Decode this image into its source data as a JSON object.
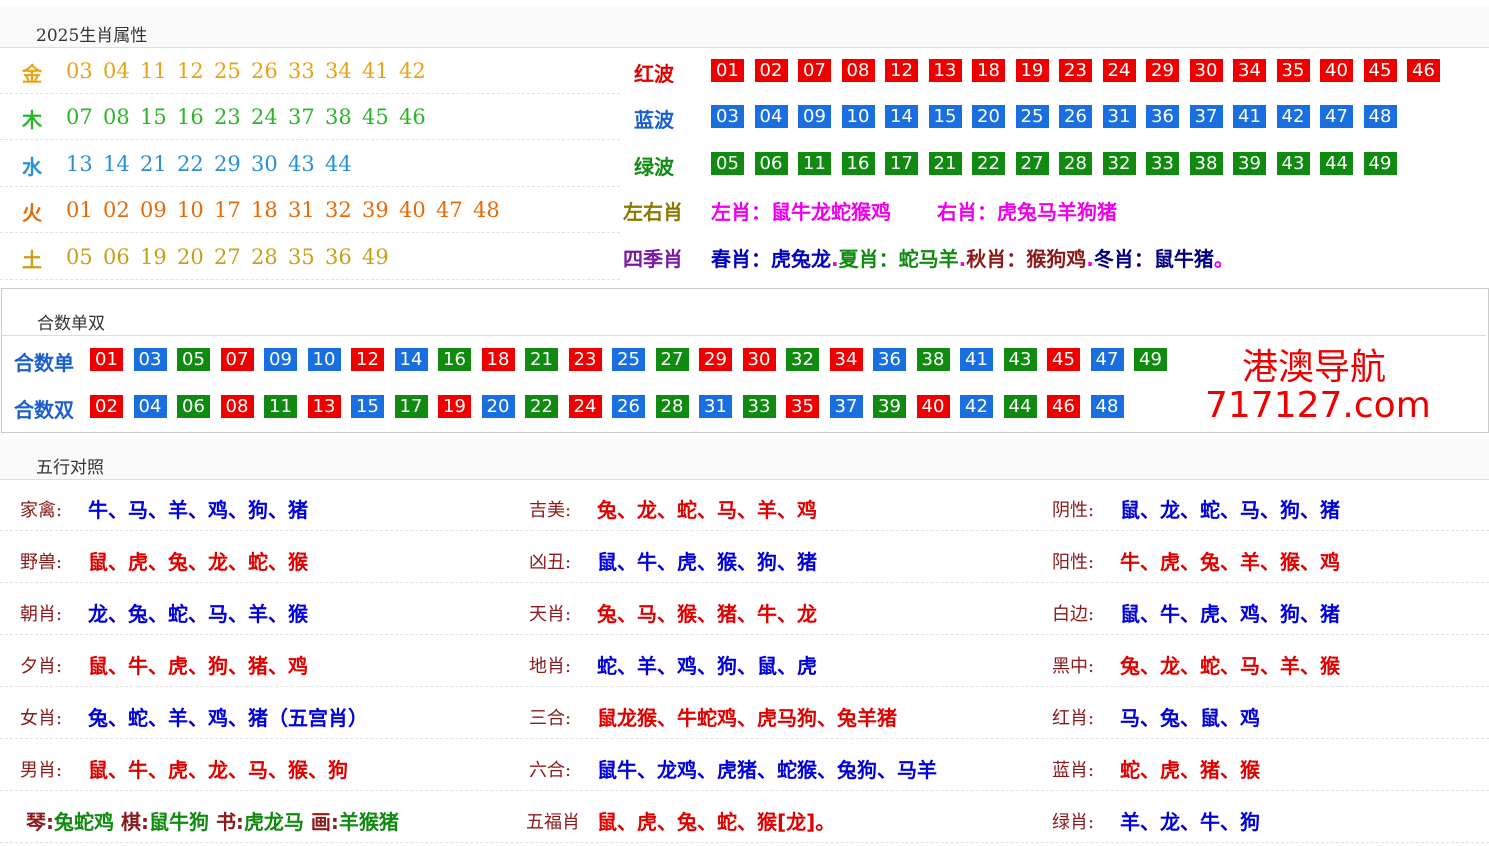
{
  "sec1": {
    "title": "2025生肖属性"
  },
  "elements": [
    {
      "name": "金",
      "color": "#e8a317",
      "nums": [
        "03",
        "04",
        "11",
        "12",
        "25",
        "26",
        "33",
        "34",
        "41",
        "42"
      ]
    },
    {
      "name": "木",
      "color": "#2bb52b",
      "nums": [
        "07",
        "08",
        "15",
        "16",
        "23",
        "24",
        "37",
        "38",
        "45",
        "46"
      ]
    },
    {
      "name": "水",
      "color": "#2a8fd8",
      "nums": [
        "13",
        "14",
        "21",
        "22",
        "29",
        "30",
        "43",
        "44"
      ]
    },
    {
      "name": "火",
      "color": "#e56b0a",
      "nums": [
        "01",
        "02",
        "09",
        "10",
        "17",
        "18",
        "31",
        "32",
        "39",
        "40",
        "47",
        "48"
      ]
    },
    {
      "name": "土",
      "color": "#c8a018",
      "nums": [
        "05",
        "06",
        "19",
        "20",
        "27",
        "28",
        "35",
        "36",
        "49"
      ]
    }
  ],
  "waves": {
    "red": {
      "label": "红波",
      "nums": [
        "01",
        "02",
        "07",
        "08",
        "12",
        "13",
        "18",
        "19",
        "23",
        "24",
        "29",
        "30",
        "34",
        "35",
        "40",
        "45",
        "46"
      ]
    },
    "blue": {
      "label": "蓝波",
      "nums": [
        "03",
        "04",
        "09",
        "10",
        "14",
        "15",
        "20",
        "25",
        "26",
        "31",
        "36",
        "37",
        "41",
        "42",
        "47",
        "48"
      ]
    },
    "green": {
      "label": "绿波",
      "nums": [
        "05",
        "06",
        "11",
        "16",
        "17",
        "21",
        "22",
        "27",
        "28",
        "32",
        "33",
        "38",
        "39",
        "43",
        "44",
        "49"
      ]
    }
  },
  "leftright": {
    "label": "左右肖",
    "left": "左肖：鼠牛龙蛇猴鸡",
    "right": "右肖：虎兔马羊狗猪"
  },
  "seasons": {
    "label": "四季肖",
    "spring": "春肖：虎兔龙",
    "dot1": ".",
    "summer": "夏肖：蛇马羊",
    "dot2": ".",
    "autumn": "秋肖：猴狗鸡",
    "dot3": ".",
    "winter": "冬肖：鼠牛猪",
    "end": "。"
  },
  "sec2": {
    "title": "合数单双"
  },
  "odd": {
    "label": "合数单",
    "balls": [
      [
        "01",
        "r"
      ],
      [
        "03",
        "b"
      ],
      [
        "05",
        "g"
      ],
      [
        "07",
        "r"
      ],
      [
        "09",
        "b"
      ],
      [
        "10",
        "b"
      ],
      [
        "12",
        "r"
      ],
      [
        "14",
        "b"
      ],
      [
        "16",
        "g"
      ],
      [
        "18",
        "r"
      ],
      [
        "21",
        "g"
      ],
      [
        "23",
        "r"
      ],
      [
        "25",
        "b"
      ],
      [
        "27",
        "g"
      ],
      [
        "29",
        "r"
      ],
      [
        "30",
        "r"
      ],
      [
        "32",
        "g"
      ],
      [
        "34",
        "r"
      ],
      [
        "36",
        "b"
      ],
      [
        "38",
        "g"
      ],
      [
        "41",
        "b"
      ],
      [
        "43",
        "g"
      ],
      [
        "45",
        "r"
      ],
      [
        "47",
        "b"
      ],
      [
        "49",
        "g"
      ]
    ]
  },
  "even": {
    "label": "合数双",
    "balls": [
      [
        "02",
        "r"
      ],
      [
        "04",
        "b"
      ],
      [
        "06",
        "g"
      ],
      [
        "08",
        "r"
      ],
      [
        "11",
        "g"
      ],
      [
        "13",
        "r"
      ],
      [
        "15",
        "b"
      ],
      [
        "17",
        "g"
      ],
      [
        "19",
        "r"
      ],
      [
        "20",
        "b"
      ],
      [
        "22",
        "g"
      ],
      [
        "24",
        "r"
      ],
      [
        "26",
        "b"
      ],
      [
        "28",
        "g"
      ],
      [
        "31",
        "b"
      ],
      [
        "33",
        "g"
      ],
      [
        "35",
        "r"
      ],
      [
        "37",
        "b"
      ],
      [
        "39",
        "g"
      ],
      [
        "40",
        "r"
      ],
      [
        "42",
        "b"
      ],
      [
        "44",
        "g"
      ],
      [
        "46",
        "r"
      ],
      [
        "48",
        "b"
      ]
    ]
  },
  "brand": {
    "name": "港澳导航",
    "domain": "717127.com",
    "color": "#e00000"
  },
  "sec3": {
    "title": "五行对照"
  },
  "wuxing": [
    [
      {
        "l": "家禽:",
        "v": "牛、马、羊、鸡、狗、猪",
        "c": "#0000dd"
      },
      {
        "l": "吉美:",
        "v": "兔、龙、蛇、马、羊、鸡",
        "c": "#e00000"
      },
      {
        "l": "阴性:",
        "v": "鼠、龙、蛇、马、狗、猪",
        "c": "#0000dd"
      }
    ],
    [
      {
        "l": "野兽:",
        "v": "鼠、虎、兔、龙、蛇、猴",
        "c": "#e00000"
      },
      {
        "l": "凶丑:",
        "v": "鼠、牛、虎、猴、狗、猪",
        "c": "#0000dd"
      },
      {
        "l": "阳性:",
        "v": "牛、虎、兔、羊、猴、鸡",
        "c": "#e00000"
      }
    ],
    [
      {
        "l": "朝肖:",
        "v": "龙、兔、蛇、马、羊、猴",
        "c": "#0000dd"
      },
      {
        "l": "天肖:",
        "v": "兔、马、猴、猪、牛、龙",
        "c": "#e00000"
      },
      {
        "l": "白边:",
        "v": "鼠、牛、虎、鸡、狗、猪",
        "c": "#0000dd"
      }
    ],
    [
      {
        "l": "夕肖:",
        "v": "鼠、牛、虎、狗、猪、鸡",
        "c": "#e00000"
      },
      {
        "l": "地肖:",
        "v": "蛇、羊、鸡、狗、鼠、虎",
        "c": "#0000dd"
      },
      {
        "l": "黑中:",
        "v": "兔、龙、蛇、马、羊、猴",
        "c": "#e00000"
      }
    ],
    [
      {
        "l": "女肖:",
        "v": "兔、蛇、羊、鸡、猪（五宫肖）",
        "c": "#0000dd"
      },
      {
        "l": "三合:",
        "v": "鼠龙猴、牛蛇鸡、虎马狗、兔羊猪",
        "c": "#e00000"
      },
      {
        "l": "红肖:",
        "v": "马、兔、鼠、鸡",
        "c": "#0000dd"
      }
    ],
    [
      {
        "l": "男肖:",
        "v": "鼠、牛、虎、龙、马、猴、狗",
        "c": "#e00000"
      },
      {
        "l": "六合:",
        "v": "鼠牛、龙鸡、虎猪、蛇猴、兔狗、马羊",
        "c": "#0000dd"
      },
      {
        "l": "蓝肖:",
        "v": "蛇、虎、猪、猴",
        "c": "#e00000"
      }
    ]
  ],
  "lastrow": {
    "qin_l": "琴:",
    "qin_v": "兔蛇鸡",
    "qi_l": "棋:",
    "qi_v": "鼠牛狗",
    "shu_l": "书:",
    "shu_v": "虎龙马",
    "hua_l": "画:",
    "hua_v": "羊猴猪",
    "wufu_l": "五福肖",
    "wufu_v": "鼠、虎、兔、蛇、猴[龙]。",
    "lv_l": "绿肖:",
    "lv_v": "羊、龙、牛、狗"
  }
}
